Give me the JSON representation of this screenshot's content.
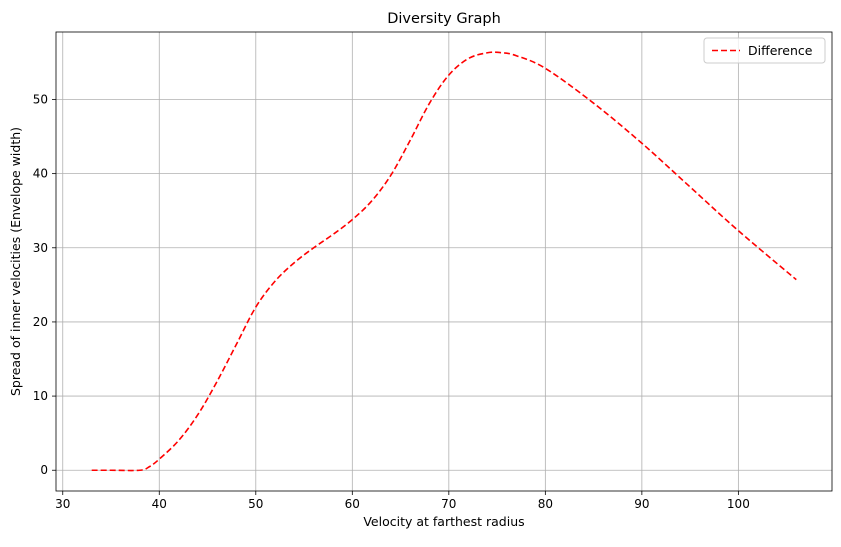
{
  "chart_data": {
    "type": "line",
    "title": "Diversity Graph",
    "xlabel": "Velocity at farthest radius",
    "ylabel": "Spread of inner velocities (Envelope width)",
    "xlim": [
      29.3,
      109.7
    ],
    "ylim": [
      -2.8,
      59.1
    ],
    "xticks": [
      30,
      40,
      50,
      60,
      70,
      80,
      90,
      100
    ],
    "yticks": [
      0,
      10,
      20,
      30,
      40,
      50
    ],
    "grid": true,
    "legend_position": "top-right",
    "series": [
      {
        "name": "Difference",
        "color": "#ff0000",
        "line_style": "dashed",
        "x": [
          33,
          35,
          38,
          39,
          40,
          42,
          44,
          46,
          48,
          50,
          52,
          54,
          56,
          58,
          60,
          62,
          64,
          66,
          68,
          70,
          72,
          74,
          75.5,
          77,
          80,
          85,
          90,
          95,
          100,
          106
        ],
        "y": [
          0,
          0,
          0,
          0.5,
          1.5,
          4,
          7.5,
          12,
          17,
          22,
          25.5,
          28,
          30,
          31.8,
          33.8,
          36.3,
          39.8,
          44.5,
          49.5,
          53.3,
          55.5,
          56.3,
          56.3,
          55.9,
          54.2,
          49.5,
          44.1,
          38.2,
          32.3,
          25.7
        ]
      }
    ]
  }
}
